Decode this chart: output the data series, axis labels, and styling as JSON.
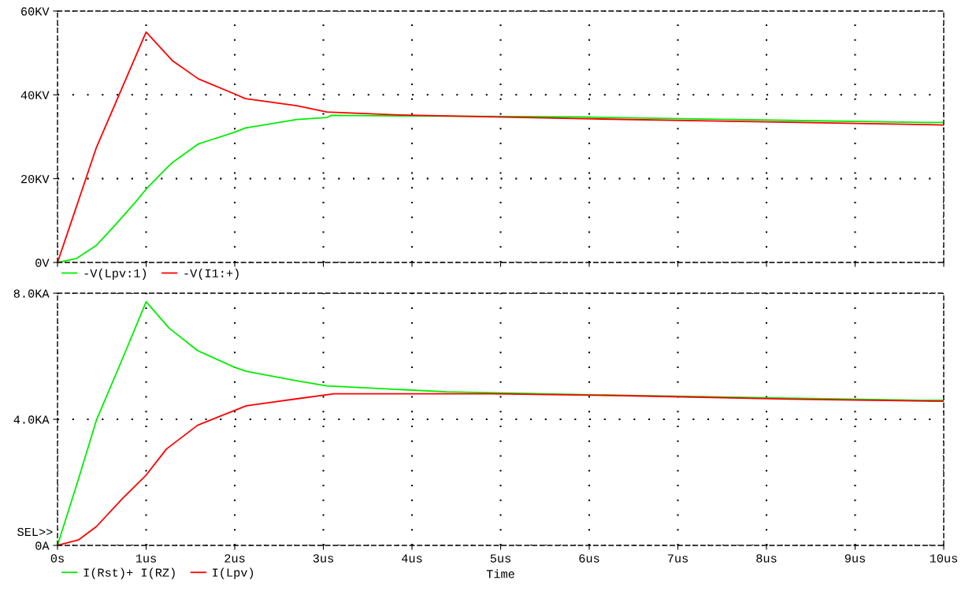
{
  "chart_data": [
    {
      "type": "line",
      "xlim": [
        0,
        10
      ],
      "xticks": [
        {
          "value": 0,
          "label": null
        },
        {
          "value": 1,
          "label": null
        },
        {
          "value": 2,
          "label": null
        },
        {
          "value": 3,
          "label": null
        },
        {
          "value": 4,
          "label": null
        },
        {
          "value": 5,
          "label": null
        },
        {
          "value": 6,
          "label": null
        },
        {
          "value": 7,
          "label": null
        },
        {
          "value": 8,
          "label": null
        },
        {
          "value": 9,
          "label": null
        },
        {
          "value": 10,
          "label": null
        }
      ],
      "ylim": [
        0,
        60
      ],
      "yticks": [
        {
          "value": 0,
          "label": "0V"
        },
        {
          "value": 20,
          "label": "20KV"
        },
        {
          "value": 40,
          "label": "40KV"
        },
        {
          "value": 60,
          "label": "60KV"
        }
      ],
      "tick_labels": "y",
      "grid": true,
      "legend": "bottom left",
      "series": [
        {
          "name": "-V(Lpv:1)",
          "color": "#00ee00",
          "x": [
            0,
            0.21,
            0.44,
            0.65,
            0.88,
            1.0,
            1.23,
            1.3,
            1.59,
            1.99,
            2.12,
            2.7,
            3.04,
            3.09,
            4.4,
            5.94,
            7.33,
            9.81,
            10
          ],
          "values": [
            0,
            0.9,
            4.1,
            8.9,
            14.4,
            17.5,
            22.5,
            23.9,
            28.3,
            31.0,
            32.1,
            34.1,
            34.6,
            35.1,
            34.9,
            34.7,
            34.2,
            33.4,
            33.4
          ]
        },
        {
          "name": "-V(I1:+)",
          "color": "#ff0000",
          "x": [
            0,
            0.21,
            0.44,
            1.0,
            1.3,
            1.59,
            1.99,
            2.12,
            2.7,
            3.04,
            3.85,
            5.94,
            7.33,
            9.81,
            10
          ],
          "values": [
            0,
            13.1,
            27.5,
            55.0,
            48.1,
            43.8,
            40.3,
            39.1,
            37.4,
            35.9,
            35.2,
            34.3,
            33.8,
            32.9,
            32.8
          ]
        }
      ]
    },
    {
      "type": "line",
      "xlabel": "Time",
      "xlim": [
        0,
        10
      ],
      "xticks": [
        {
          "value": 0,
          "label": "0s"
        },
        {
          "value": 1,
          "label": "1us"
        },
        {
          "value": 2,
          "label": "2us"
        },
        {
          "value": 3,
          "label": "3us"
        },
        {
          "value": 4,
          "label": "4us"
        },
        {
          "value": 5,
          "label": "5us"
        },
        {
          "value": 6,
          "label": "6us"
        },
        {
          "value": 7,
          "label": "7us"
        },
        {
          "value": 8,
          "label": "8us"
        },
        {
          "value": 9,
          "label": "9us"
        },
        {
          "value": 10,
          "label": "10us"
        }
      ],
      "ylim": [
        0,
        8
      ],
      "yticks": [
        {
          "value": 0,
          "label": "0A"
        },
        {
          "value": 4,
          "label": "4.0KA"
        },
        {
          "value": 8,
          "label": "8.0KA"
        }
      ],
      "grid": true,
      "legend": "bottom left",
      "annotations": [
        "SEL>>"
      ],
      "series": [
        {
          "name": "I(Rst)+ I(RZ)",
          "color": "#00ee00",
          "x": [
            0,
            0.24,
            0.44,
            0.73,
            1.0,
            1.26,
            1.58,
            1.99,
            2.13,
            2.7,
            3.04,
            4.39,
            6.4,
            8.25,
            9.74,
            10
          ],
          "values": [
            0,
            2.14,
            3.98,
            5.9,
            7.73,
            6.89,
            6.18,
            5.66,
            5.52,
            5.22,
            5.06,
            4.87,
            4.76,
            4.67,
            4.6,
            4.6
          ]
        },
        {
          "name": "I(Lpv)",
          "color": "#ff0000",
          "x": [
            0,
            0.24,
            0.44,
            0.73,
            1.0,
            1.23,
            1.58,
            1.99,
            2.13,
            2.7,
            3.12,
            4.92,
            6.4,
            8.25,
            9.83,
            10
          ],
          "values": [
            0,
            0.18,
            0.6,
            1.48,
            2.23,
            3.06,
            3.81,
            4.27,
            4.43,
            4.65,
            4.81,
            4.81,
            4.75,
            4.64,
            4.58,
            4.57
          ]
        }
      ]
    }
  ]
}
